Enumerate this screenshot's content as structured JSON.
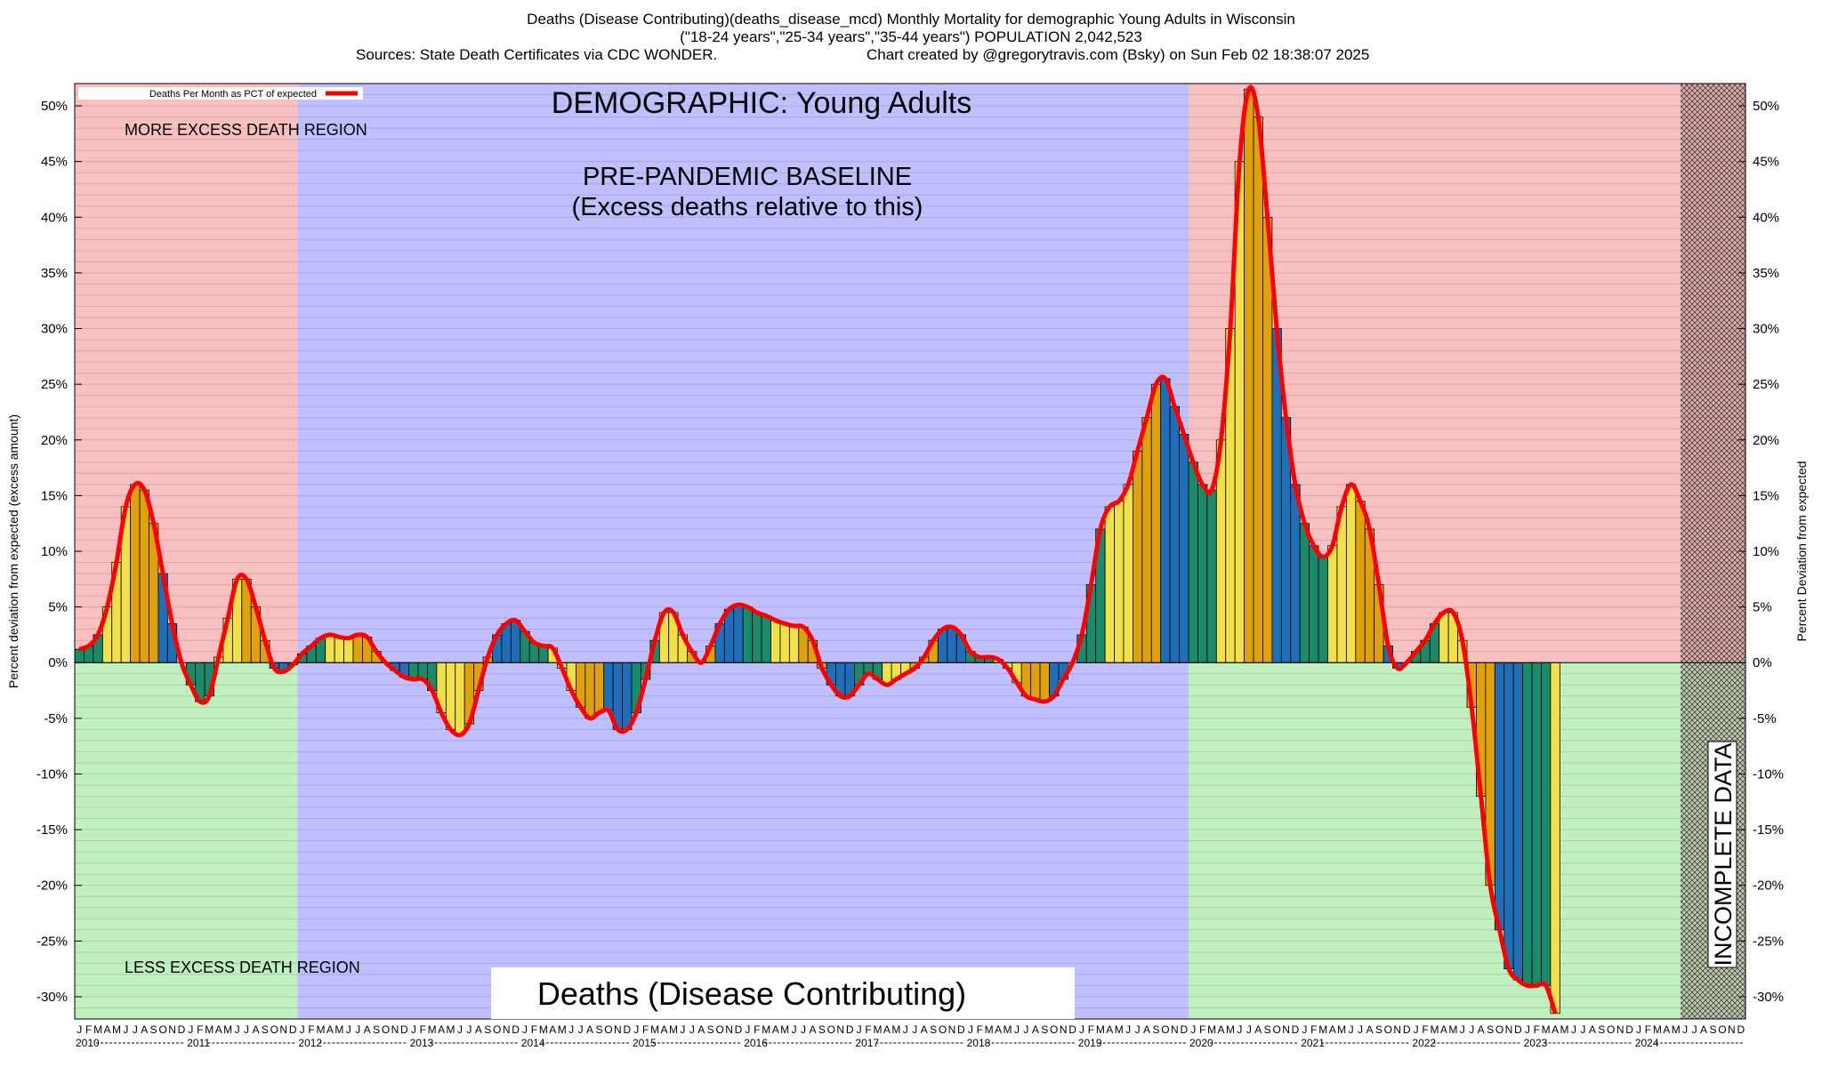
{
  "header": {
    "line1": "Deaths (Disease Contributing)(deaths_disease_mcd) Monthly Mortality for demographic Young Adults in Wisconsin",
    "line2": "(\"18-24 years\",\"25-34 years\",\"35-44 years\") POPULATION 2,042,523",
    "line3_left": "Sources: State Death Certificates via CDC WONDER.",
    "line3_right": "Chart created by @gregorytravis.com (Bsky) on Sun Feb 02 18:38:07 2025"
  },
  "chart_data": {
    "type": "bar",
    "legend": {
      "label": "Deaths Per Month as PCT of expected",
      "position": "top-left",
      "line_color": "#ff0000"
    },
    "annotations": {
      "demographic": "DEMOGRAPHIC: Young Adults",
      "baseline_line1": "PRE-PANDEMIC BASELINE",
      "baseline_line2": "(Excess deaths relative to this)",
      "more_region": "MORE EXCESS DEATH REGION",
      "less_region": "LESS EXCESS DEATH REGION",
      "incomplete": "INCOMPLETE DATA",
      "metric": "Deaths (Disease Contributing)"
    },
    "ylabel_left": "Percent deviation from expected (excess amount)",
    "ylabel_right": "Percent Deviation from expected",
    "ylim": [
      -32,
      52
    ],
    "yticks": [
      50,
      45,
      40,
      35,
      30,
      25,
      20,
      15,
      10,
      5,
      0,
      -5,
      -10,
      -15,
      -20,
      -25,
      -30
    ],
    "ytick_suffix": "%",
    "x_start": "2010-01",
    "month_letters": [
      "J",
      "F",
      "M",
      "A",
      "M",
      "J",
      "J",
      "A",
      "S",
      "O",
      "N",
      "D"
    ],
    "years": [
      "2010",
      "2011",
      "2012",
      "2013",
      "2014",
      "2015",
      "2016",
      "2017",
      "2018",
      "2019",
      "2020",
      "2021",
      "2022",
      "2023",
      "2024"
    ],
    "baseline_period": [
      "2012-01",
      "2019-12"
    ],
    "incomplete_period": [
      "2024-06",
      "2024-12"
    ],
    "bar_palette": [
      "#1a8a6a",
      "#f2e04a",
      "#e0a20c",
      "#1e6fb8"
    ],
    "region_colors": {
      "excess": "#f8c0c0",
      "deficit": "#c0f0c0",
      "baseline": "#c0c0ff"
    },
    "values": [
      1.2,
      1.5,
      2.5,
      5.0,
      9.0,
      14.0,
      16.0,
      15.5,
      12.5,
      8.0,
      3.5,
      0.0,
      -2.0,
      -3.5,
      -3.0,
      0.5,
      4.0,
      7.5,
      7.5,
      5.0,
      2.0,
      -0.5,
      -0.8,
      -0.2,
      0.8,
      1.5,
      2.2,
      2.5,
      2.3,
      2.2,
      2.5,
      2.3,
      1.0,
      0.0,
      -0.7,
      -1.3,
      -1.5,
      -1.5,
      -2.5,
      -4.5,
      -6.0,
      -6.5,
      -5.5,
      -2.5,
      0.5,
      2.5,
      3.5,
      3.8,
      2.8,
      1.8,
      1.5,
      1.3,
      -0.5,
      -2.5,
      -4.0,
      -5.0,
      -4.5,
      -4.3,
      -6.0,
      -6.0,
      -4.5,
      -1.5,
      2.0,
      4.5,
      4.5,
      2.5,
      1.0,
      0.0,
      1.5,
      3.5,
      4.8,
      5.2,
      5.0,
      4.5,
      4.2,
      3.8,
      3.5,
      3.3,
      3.2,
      2.0,
      -0.5,
      -2.0,
      -3.0,
      -3.0,
      -2.0,
      -1.0,
      -1.5,
      -2.0,
      -1.5,
      -1.0,
      -0.5,
      0.5,
      2.0,
      3.0,
      3.2,
      2.5,
      1.0,
      0.5,
      0.5,
      0.3,
      -0.5,
      -1.8,
      -3.0,
      -3.3,
      -3.5,
      -3.0,
      -1.5,
      0.0,
      2.5,
      7.0,
      12.0,
      14.0,
      14.5,
      16.0,
      19.0,
      22.0,
      25.0,
      25.5,
      23.0,
      20.5,
      18.0,
      16.0,
      15.5,
      20.0,
      30.0,
      45.0,
      51.5,
      49.0,
      40.0,
      30.0,
      22.0,
      16.0,
      12.5,
      10.5,
      9.5,
      10.5,
      14.0,
      16.0,
      14.5,
      12.0,
      7.0,
      1.5,
      -0.5,
      0.0,
      1.0,
      2.0,
      3.5,
      4.5,
      4.5,
      2.0,
      -4.0,
      -12.0,
      -20.0,
      -24.0,
      -27.5,
      -28.5,
      -29.0,
      -29.0,
      -29.0,
      -31.5
    ]
  }
}
